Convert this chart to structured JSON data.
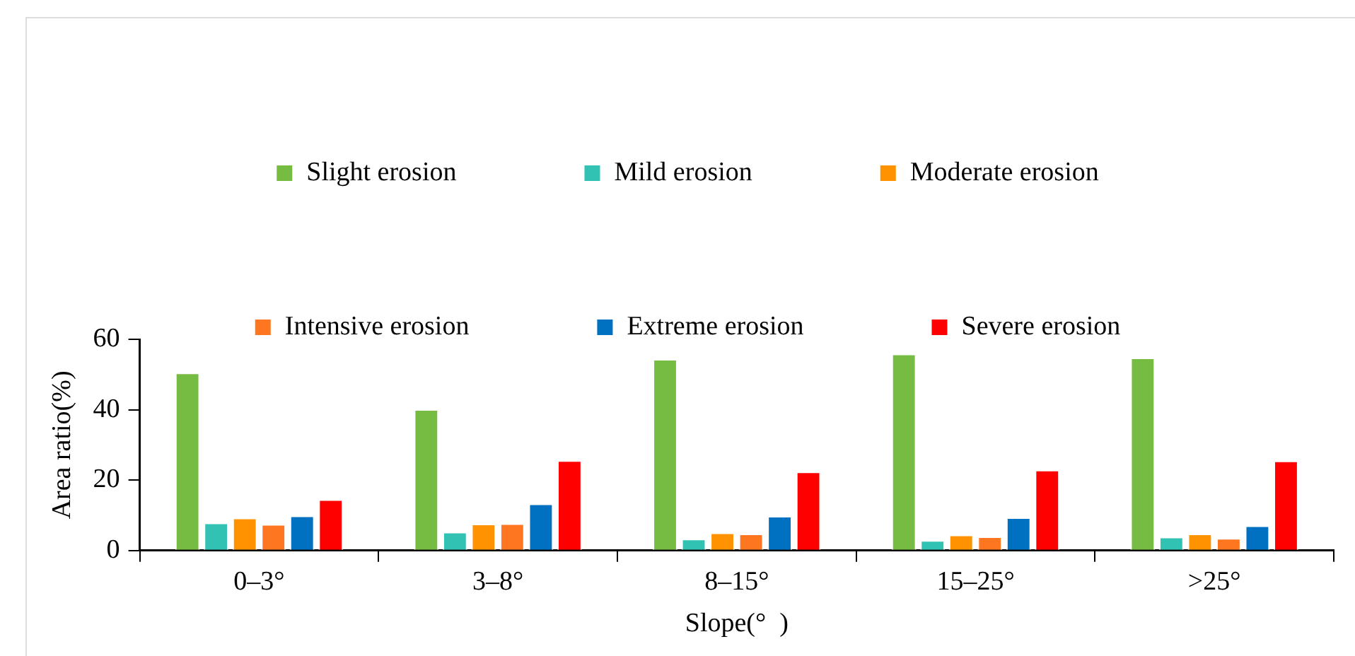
{
  "chart_data": {
    "type": "bar",
    "xlabel": "Slope(°  )",
    "ylabel": "Area ratio(%)",
    "categories": [
      "0–3°",
      "3–8°",
      "8–15°",
      "15–25°",
      ">25°"
    ],
    "series": [
      {
        "name": "Slight erosion",
        "color": "#76bc43",
        "values": [
          50.5,
          40.1,
          54.4,
          55.9,
          54.8
        ]
      },
      {
        "name": "Mild erosion",
        "color": "#31c2b4",
        "values": [
          7.9,
          5.3,
          3.3,
          2.9,
          3.9
        ]
      },
      {
        "name": "Moderate erosion",
        "color": "#ff9200",
        "values": [
          9.3,
          7.6,
          5.1,
          4.5,
          4.8
        ]
      },
      {
        "name": "Intensive erosion",
        "color": "#ff7621",
        "values": [
          7.5,
          7.7,
          4.8,
          4.0,
          3.5
        ]
      },
      {
        "name": "Extreme erosion",
        "color": "#0070c0",
        "values": [
          9.9,
          13.3,
          9.8,
          9.4,
          7.1
        ]
      },
      {
        "name": "Severe erosion",
        "color": "#ff0000",
        "values": [
          14.5,
          25.6,
          22.4,
          22.9,
          25.5
        ]
      }
    ],
    "ylim": [
      0,
      60
    ],
    "yticks": [
      0,
      20,
      40,
      60
    ],
    "grid": false,
    "legend": "top"
  }
}
